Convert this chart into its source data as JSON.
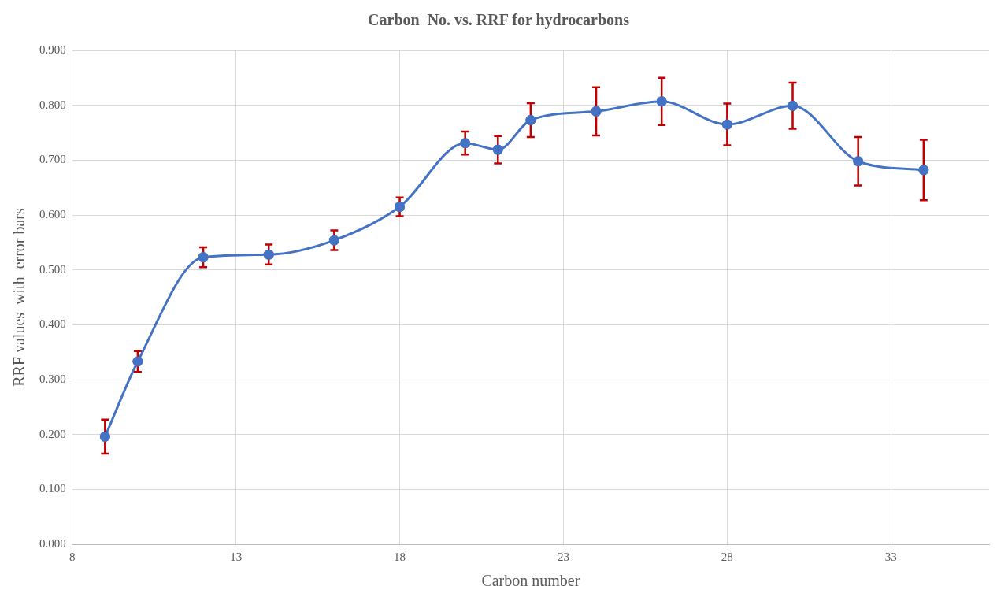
{
  "chart_data": {
    "type": "line",
    "title": "Carbon  No. vs. RRF for hydrocarbons",
    "xlabel": "Carbon number",
    "ylabel": "RRF values  with  error bars",
    "x": [
      9,
      10,
      12,
      14,
      16,
      18,
      20,
      21,
      22,
      24,
      26,
      28,
      30,
      32,
      34
    ],
    "series": [
      {
        "color": "#4472c4",
        "values": [
          0.196,
          0.333,
          0.523,
          0.528,
          0.554,
          0.615,
          0.731,
          0.719,
          0.773,
          0.789,
          0.807,
          0.765,
          0.799,
          0.698,
          0.682
        ],
        "errors": [
          0.031,
          0.019,
          0.018,
          0.018,
          0.018,
          0.017,
          0.021,
          0.025,
          0.031,
          0.044,
          0.043,
          0.038,
          0.042,
          0.044,
          0.055
        ]
      }
    ],
    "xlim": [
      8,
      36
    ],
    "xticks": [
      8,
      13,
      18,
      23,
      28,
      33
    ],
    "ylim": [
      0,
      0.9
    ],
    "yticks": [
      {
        "value": 0,
        "label": "0.000"
      },
      {
        "value": 0.1,
        "label": "0.100"
      },
      {
        "value": 0.2,
        "label": "0.200"
      },
      {
        "value": 0.3,
        "label": "0.300"
      },
      {
        "value": 0.4,
        "label": "0.400"
      },
      {
        "value": 0.5,
        "label": "0.500"
      },
      {
        "value": 0.6,
        "label": "0.600"
      },
      {
        "value": 0.7,
        "label": "0.700"
      },
      {
        "value": 0.8,
        "label": "0.800"
      },
      {
        "value": 0.9,
        "label": "0.900"
      }
    ],
    "grid": true,
    "legend": false,
    "marker": "circle",
    "line_style": "solid"
  }
}
